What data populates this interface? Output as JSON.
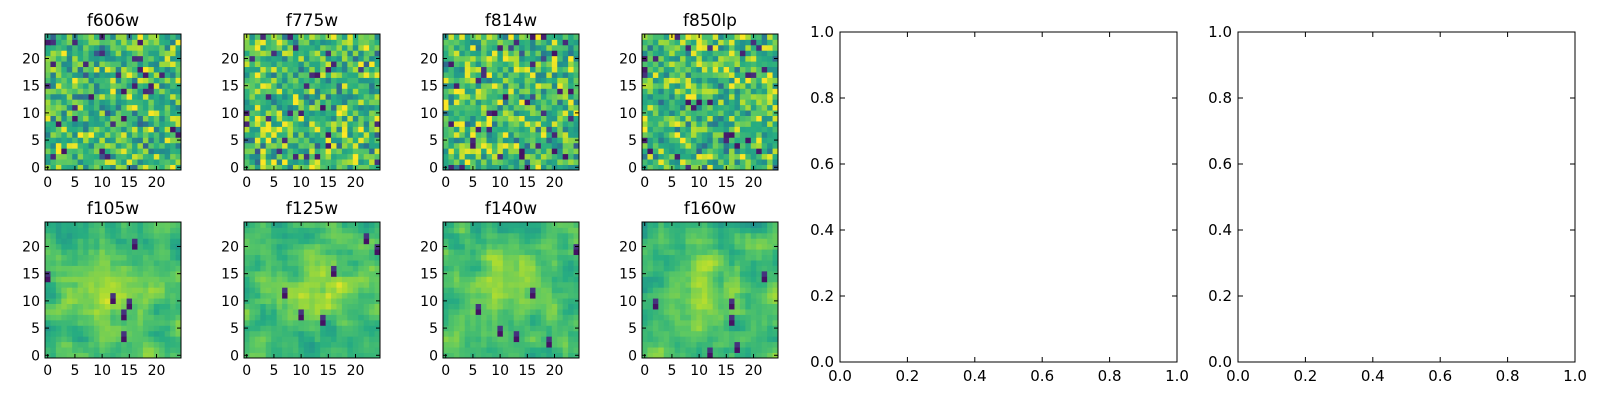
{
  "chart_data": [
    {
      "type": "heatmap",
      "title": "f606w",
      "xticks": [
        "0",
        "5",
        "10",
        "15",
        "20"
      ],
      "yticks": [
        "0",
        "5",
        "10",
        "15",
        "20"
      ],
      "grid_size": [
        25,
        25
      ],
      "colormap": "viridis"
    },
    {
      "type": "heatmap",
      "title": "f775w",
      "xticks": [
        "0",
        "5",
        "10",
        "15",
        "20"
      ],
      "yticks": [
        "0",
        "5",
        "10",
        "15",
        "20"
      ],
      "grid_size": [
        25,
        25
      ],
      "colormap": "viridis"
    },
    {
      "type": "heatmap",
      "title": "f814w",
      "xticks": [
        "0",
        "5",
        "10",
        "15",
        "20"
      ],
      "yticks": [
        "0",
        "5",
        "10",
        "15",
        "20"
      ],
      "grid_size": [
        25,
        25
      ],
      "colormap": "viridis"
    },
    {
      "type": "heatmap",
      "title": "f850lp",
      "xticks": [
        "0",
        "5",
        "10",
        "15",
        "20"
      ],
      "yticks": [
        "0",
        "5",
        "10",
        "15",
        "20"
      ],
      "grid_size": [
        25,
        25
      ],
      "colormap": "viridis"
    },
    {
      "type": "heatmap",
      "title": "f105w",
      "xticks": [
        "0",
        "5",
        "10",
        "15",
        "20"
      ],
      "yticks": [
        "0",
        "5",
        "10",
        "15",
        "20"
      ],
      "grid_size": [
        25,
        25
      ],
      "colormap": "viridis"
    },
    {
      "type": "heatmap",
      "title": "f125w",
      "xticks": [
        "0",
        "5",
        "10",
        "15",
        "20"
      ],
      "yticks": [
        "0",
        "5",
        "10",
        "15",
        "20"
      ],
      "grid_size": [
        25,
        25
      ],
      "colormap": "viridis"
    },
    {
      "type": "heatmap",
      "title": "f140w",
      "xticks": [
        "0",
        "5",
        "10",
        "15",
        "20"
      ],
      "yticks": [
        "0",
        "5",
        "10",
        "15",
        "20"
      ],
      "grid_size": [
        25,
        25
      ],
      "colormap": "viridis"
    },
    {
      "type": "heatmap",
      "title": "f160w",
      "xticks": [
        "0",
        "5",
        "10",
        "15",
        "20"
      ],
      "yticks": [
        "0",
        "5",
        "10",
        "15",
        "20"
      ],
      "grid_size": [
        25,
        25
      ],
      "colormap": "viridis"
    },
    {
      "type": "scatter",
      "title": "",
      "xticks": [
        "0.0",
        "0.2",
        "0.4",
        "0.6",
        "0.8",
        "1.0"
      ],
      "yticks": [
        "0.0",
        "0.2",
        "0.4",
        "0.6",
        "0.8",
        "1.0"
      ],
      "xlim": [
        0,
        1
      ],
      "ylim": [
        0,
        1
      ],
      "series": []
    },
    {
      "type": "scatter",
      "title": "",
      "xticks": [
        "0.0",
        "0.2",
        "0.4",
        "0.6",
        "0.8",
        "1.0"
      ],
      "yticks": [
        "0.0",
        "0.2",
        "0.4",
        "0.6",
        "0.8",
        "1.0"
      ],
      "xlim": [
        0,
        1
      ],
      "ylim": [
        0,
        1
      ],
      "series": []
    }
  ]
}
